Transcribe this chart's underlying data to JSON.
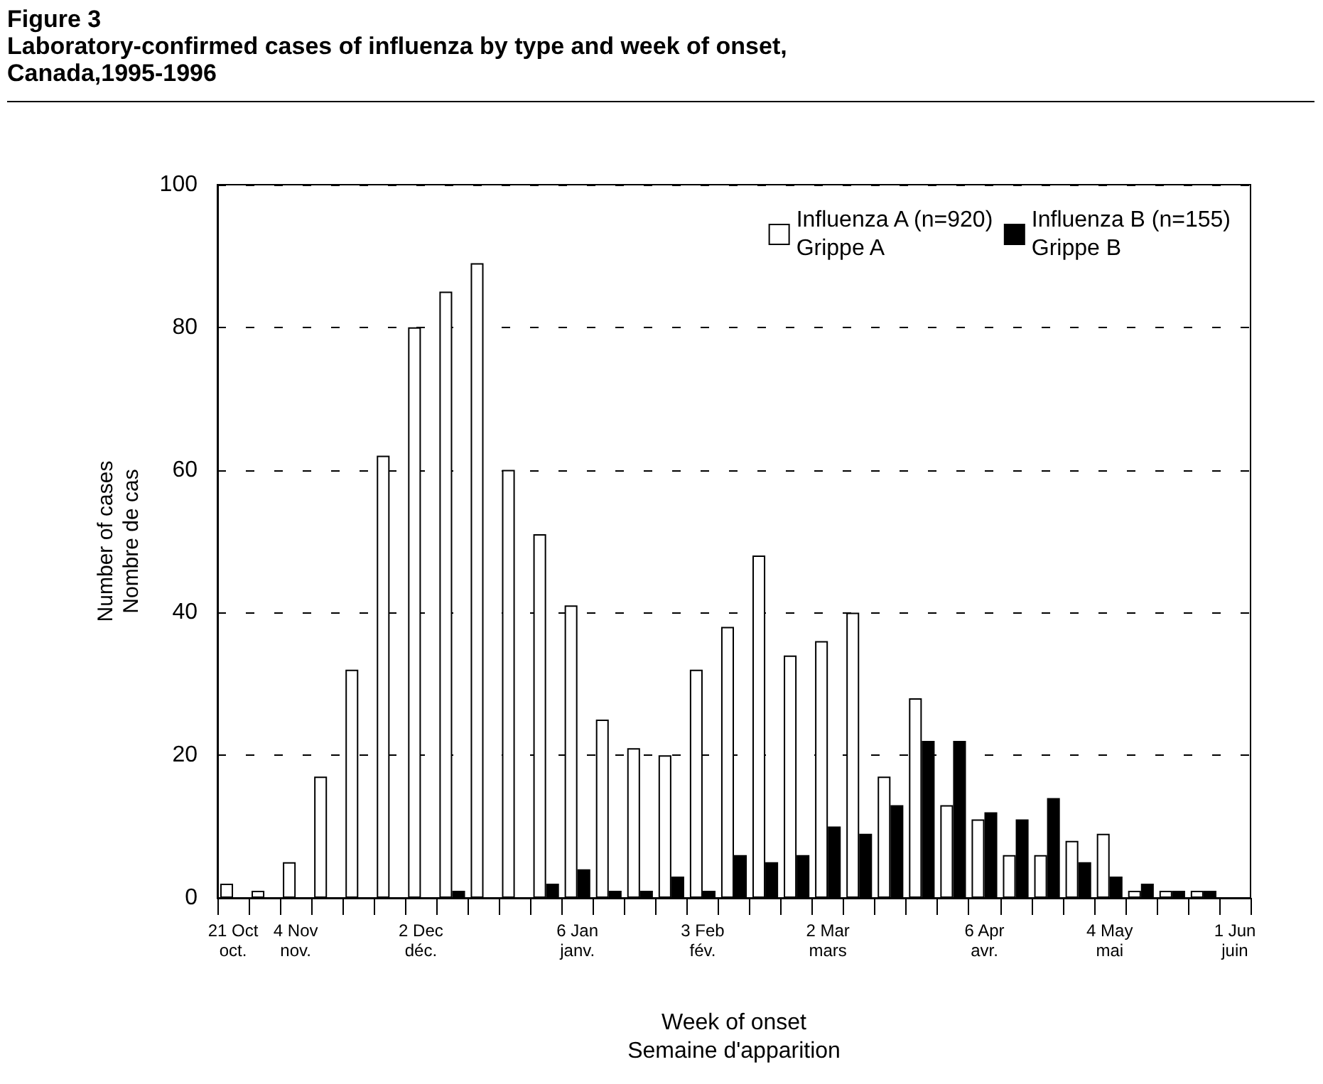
{
  "chart_data": {
    "type": "bar",
    "title": "Figure 3\nLaboratory-confirmed cases of influenza by type and week of onset, Canada,1995-1996",
    "xlabel": "Week of onset\nSemaine d'apparition",
    "ylabel": "Number of cases\nNombre de cas",
    "categories": [
      "21 Oct\noct.",
      null,
      "4 Nov\nnov.",
      null,
      null,
      null,
      "2 Dec\ndéc.",
      null,
      null,
      null,
      null,
      "6 Jan\njanv.",
      null,
      null,
      null,
      "3 Feb\nfév.",
      null,
      null,
      null,
      "2 Mar\nmars",
      null,
      null,
      null,
      null,
      "6 Apr\navr.",
      null,
      null,
      null,
      "4 May\nmai",
      null,
      null,
      null,
      "1 Jun\njuin"
    ],
    "series": [
      {
        "name": "Influenza A (n=920)\nGrippe A",
        "color": "#ffffff",
        "values": [
          2,
          1,
          5,
          17,
          32,
          62,
          80,
          85,
          89,
          60,
          51,
          41,
          25,
          21,
          20,
          32,
          38,
          48,
          34,
          36,
          40,
          17,
          28,
          13,
          11,
          6,
          6,
          8,
          9,
          1,
          1,
          1,
          null
        ]
      },
      {
        "name": "Influenza B (n=155)\nGrippe B",
        "color": "#000000",
        "values": [
          0,
          0,
          0,
          0,
          0,
          0,
          0,
          1,
          0,
          0,
          2,
          4,
          1,
          1,
          3,
          1,
          6,
          5,
          6,
          10,
          9,
          13,
          22,
          22,
          12,
          11,
          14,
          5,
          3,
          2,
          1,
          1,
          null
        ]
      }
    ],
    "ylim": [
      0,
      100
    ],
    "yticks": [
      0,
      20,
      40,
      60,
      80,
      100
    ],
    "grid": "y",
    "legend": "top right"
  }
}
